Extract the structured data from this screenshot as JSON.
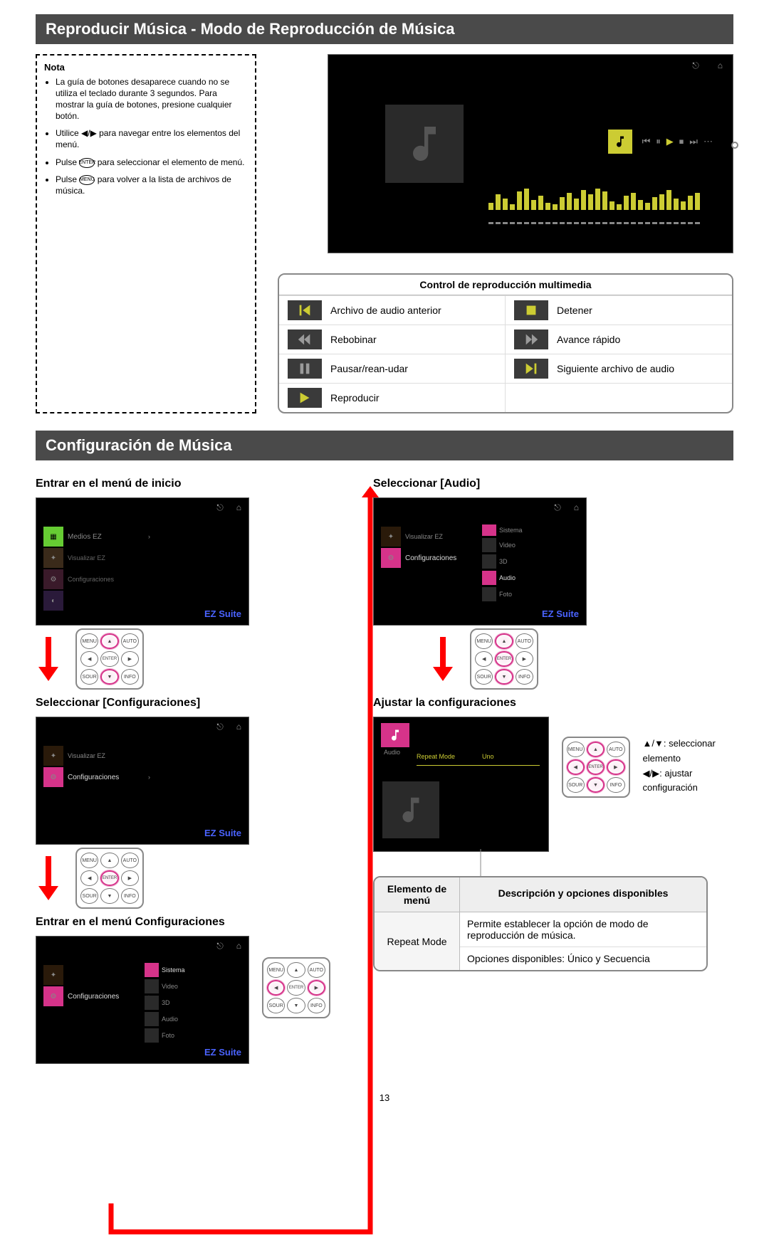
{
  "header1": "Reproducir Música - Modo de Reproducción de Música",
  "nota": {
    "title": "Nota",
    "items": [
      "La guía de botones desaparece cuando no se utiliza el teclado durante 3 segundos. Para mostrar la guía de botones, presione cualquier botón.",
      "Utilice ◀/▶ para navegar entre los elementos del menú.",
      "Pulse ENTER para seleccionar el elemento de menú.",
      "Pulse MENU para volver a la lista de archivos de música."
    ],
    "enter_btn": "ENTER",
    "menu_btn": "MENU"
  },
  "controls_table": {
    "title": "Control de reproducción multimedia",
    "rows": [
      {
        "icon": "prev",
        "label": "Archivo de audio anterior"
      },
      {
        "icon": "stop",
        "label": "Detener"
      },
      {
        "icon": "rew",
        "label": "Rebobinar"
      },
      {
        "icon": "ffwd",
        "label": "Avance rápido"
      },
      {
        "icon": "pause",
        "label": "Pausar/rean-udar"
      },
      {
        "icon": "next",
        "label": "Siguiente archivo de audio"
      },
      {
        "icon": "play",
        "label": "Reproducir"
      }
    ]
  },
  "header2": "Configuración de Música",
  "steps_left": {
    "s1": "Entrar en el menú de inicio",
    "s2": "Seleccionar [Configuraciones]",
    "s3": "Entrar en el menú Configuraciones"
  },
  "steps_right": {
    "s1": "Seleccionar [Audio]",
    "s2": "Ajustar la configuraciones"
  },
  "mock_labels": {
    "ez_suite": "EZ Suite",
    "medios": "Medios EZ",
    "config": "Configuraciones",
    "sistema": "Sistema",
    "audio": "Audio",
    "repeat_mode": "Repeat Mode",
    "repeat_val": "Uno"
  },
  "legend": {
    "l1": "▲/▼: seleccionar elemento",
    "l2": "◀/▶: ajustar configuración"
  },
  "option_table": {
    "h1": "Elemento de menú",
    "h2": "Descripción y opciones disponibles",
    "row_title": "Repeat Mode",
    "desc1": "Permite establecer la opción de modo de reproducción de música.",
    "desc2": "Opciones disponibles: Único y Secuencia"
  },
  "page_number": "13",
  "colors": {
    "bar_bg": "#4a4a4a",
    "accent_yellow": "#cccc33",
    "accent_pink": "#d6338a",
    "accent_green": "#66cc33",
    "accent_red": "#ff0000",
    "ez_blue": "#4a63ff"
  },
  "eq_bars": [
    10,
    22,
    16,
    8,
    26,
    30,
    14,
    20,
    10,
    8,
    18,
    24,
    16,
    28,
    22,
    30,
    26,
    12,
    8,
    20,
    24,
    14,
    10,
    18,
    22,
    28,
    16,
    12,
    20,
    24
  ],
  "remote_labels": {
    "tl": "MENU",
    "tc": "▲",
    "tr": "AUTO",
    "ml": "◀",
    "mc": "ENTER",
    "mr": "▶",
    "bl": "SOUR",
    "bc": "▼",
    "br": "INFO"
  }
}
